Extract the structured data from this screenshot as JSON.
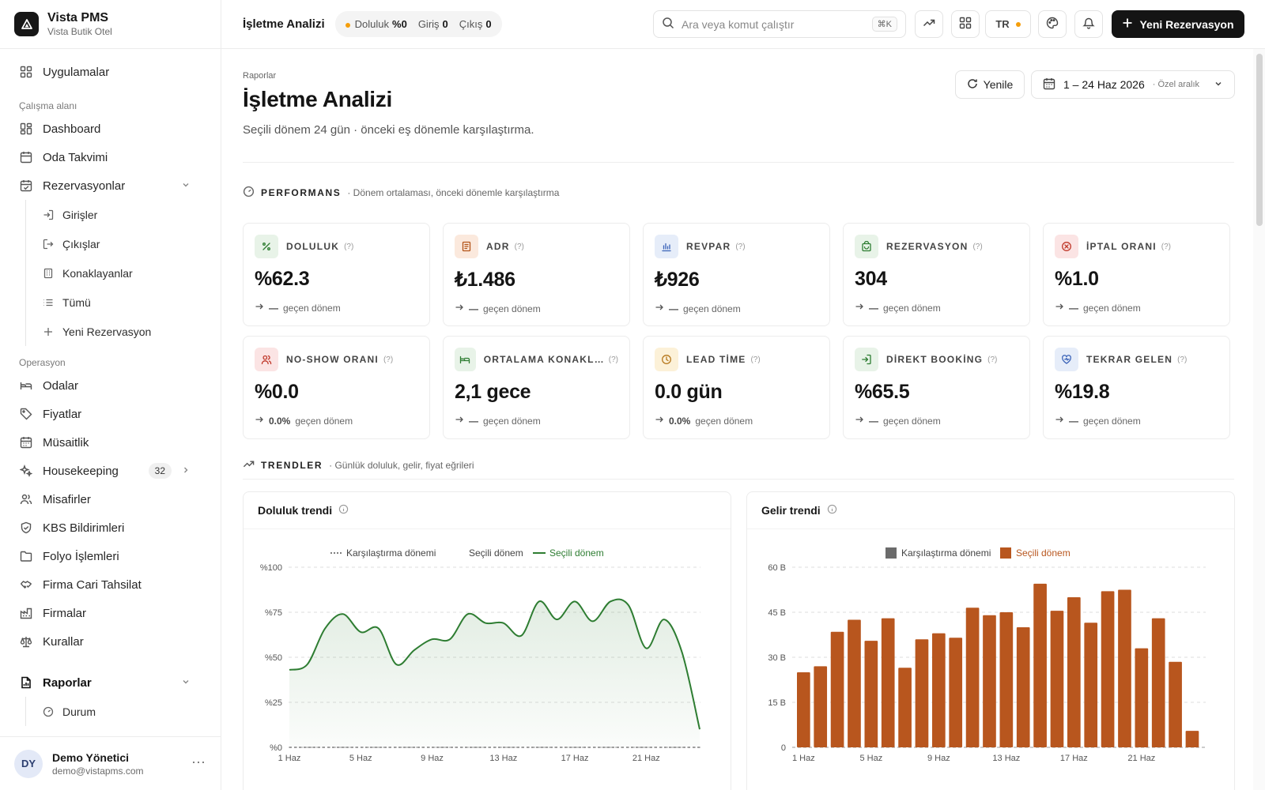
{
  "app": {
    "name": "Vista PMS",
    "hotel": "Vista Butik Otel"
  },
  "sidebar": {
    "apps_label": "Uygulamalar",
    "workspace_label": "Çalışma alanı",
    "workspace": [
      {
        "label": "Dashboard",
        "icon": "dashboard-icon"
      },
      {
        "label": "Oda Takvimi",
        "icon": "calendar-icon"
      },
      {
        "label": "Rezervasyonlar",
        "icon": "calendar-check-icon"
      }
    ],
    "reservations_sub": [
      {
        "label": "Girişler",
        "icon": "login-icon"
      },
      {
        "label": "Çıkışlar",
        "icon": "logout-icon"
      },
      {
        "label": "Konaklayanlar",
        "icon": "building-icon"
      },
      {
        "label": "Tümü",
        "icon": "list-icon"
      },
      {
        "label": "Yeni Rezervasyon",
        "icon": "plus-icon"
      }
    ],
    "operations_label": "Operasyon",
    "operations": [
      {
        "label": "Odalar",
        "icon": "bed-icon"
      },
      {
        "label": "Fiyatlar",
        "icon": "tag-icon"
      },
      {
        "label": "Müsaitlik",
        "icon": "calendar-grid-icon"
      },
      {
        "label": "Housekeeping",
        "icon": "sparkles-icon",
        "badge": "32"
      },
      {
        "label": "Misafirler",
        "icon": "users-icon"
      },
      {
        "label": "KBS Bildirimleri",
        "icon": "shield-icon"
      },
      {
        "label": "Folyo İşlemleri",
        "icon": "folder-icon"
      },
      {
        "label": "Firma Cari Tahsilat",
        "icon": "handshake-icon"
      },
      {
        "label": "Firmalar",
        "icon": "factory-icon"
      },
      {
        "label": "Kurallar",
        "icon": "scale-icon"
      }
    ],
    "reports": {
      "label": "Raporlar",
      "icon": "report-icon"
    },
    "reports_sub": [
      {
        "label": "Durum",
        "icon": "gauge-icon"
      }
    ],
    "user": {
      "initials": "DY",
      "name": "Demo Yönetici",
      "email": "demo@vistapms.com"
    }
  },
  "topbar": {
    "title": "İşletme Analizi",
    "occupancy_label": "Doluluk",
    "occupancy_value": "%0",
    "checkin_label": "Giriş",
    "checkin_value": "0",
    "checkout_label": "Çıkış",
    "checkout_value": "0",
    "search_placeholder": "Ara veya komut çalıştır",
    "search_shortcut": "⌘K",
    "lang": "TR",
    "new_reservation": "Yeni Rezervasyon"
  },
  "page": {
    "breadcrumb": "Raporlar",
    "title": "İşletme Analizi",
    "description": "Seçili dönem 24 gün · önceki eş dönemle karşılaştırma.",
    "refresh_label": "Yenile",
    "date_range": "1 – 24 Haz 2026",
    "date_range_note": "· Özel aralık"
  },
  "performance": {
    "title": "PERFORMANS",
    "subtitle": "· Dönem ortalaması, önceki dönemle karşılaştırma",
    "cards": [
      {
        "label": "DOLULUK",
        "value": "%62.3",
        "delta": "—",
        "compare": "geçen dönem",
        "icon": "percent-icon",
        "bg": "#e8f3e8",
        "fg": "#2e7d32"
      },
      {
        "label": "ADR",
        "value": "₺1.486",
        "delta": "—",
        "compare": "geçen dönem",
        "icon": "receipt-icon",
        "bg": "#fbe9dd",
        "fg": "#b35418"
      },
      {
        "label": "REVPAR",
        "value": "₺926",
        "delta": "—",
        "compare": "geçen dönem",
        "icon": "bar-chart-icon",
        "bg": "#e6edf9",
        "fg": "#3b63b8"
      },
      {
        "label": "REZERVASYON",
        "value": "304",
        "delta": "—",
        "compare": "geçen dönem",
        "icon": "bag-icon",
        "bg": "#e8f3e8",
        "fg": "#2e7d32"
      },
      {
        "label": "İPTAL ORANI",
        "value": "%1.0",
        "delta": "—",
        "compare": "geçen dönem",
        "icon": "x-circle-icon",
        "bg": "#fbe4e4",
        "fg": "#c0392b"
      },
      {
        "label": "NO-SHOW ORANI",
        "value": "%0.0",
        "delta": "0.0%",
        "compare": "geçen dönem",
        "icon": "users-icon",
        "bg": "#fbe4e4",
        "fg": "#c0392b"
      },
      {
        "label": "ORTALAMA KONAKLAMA",
        "value": "2,1 gece",
        "delta": "—",
        "compare": "geçen dönem",
        "icon": "bed-icon",
        "bg": "#e8f3e8",
        "fg": "#2e7d32"
      },
      {
        "label": "LEAD TİME",
        "value": "0.0 gün",
        "delta": "0.0%",
        "compare": "geçen dönem",
        "icon": "clock-icon",
        "bg": "#fcf1d8",
        "fg": "#b7791f"
      },
      {
        "label": "DİREKT BOOKİNG",
        "value": "%65.5",
        "delta": "—",
        "compare": "geçen dönem",
        "icon": "login-icon",
        "bg": "#e8f3e8",
        "fg": "#2e7d32"
      },
      {
        "label": "TEKRAR GELEN",
        "value": "%19.8",
        "delta": "—",
        "compare": "geçen dönem",
        "icon": "heart-icon",
        "bg": "#e6edf9",
        "fg": "#3b63b8"
      }
    ]
  },
  "trends": {
    "title": "TRENDLER",
    "subtitle": "· Günlük doluluk, gelir, fiyat eğrileri"
  },
  "chart_data": [
    {
      "type": "area",
      "title": "Doluluk trendi",
      "legend": [
        "Karşılaştırma dönemi",
        "Seçili dönem",
        "Seçili dönem"
      ],
      "x": [
        "1 Haz",
        "2 Haz",
        "3 Haz",
        "4 Haz",
        "5 Haz",
        "6 Haz",
        "7 Haz",
        "8 Haz",
        "9 Haz",
        "10 Haz",
        "11 Haz",
        "12 Haz",
        "13 Haz",
        "14 Haz",
        "15 Haz",
        "16 Haz",
        "17 Haz",
        "18 Haz",
        "19 Haz",
        "20 Haz",
        "21 Haz",
        "22 Haz",
        "23 Haz",
        "24 Haz"
      ],
      "tick_labels": [
        "1 Haz",
        "5 Haz",
        "9 Haz",
        "13 Haz",
        "17 Haz",
        "21 Haz"
      ],
      "y_ticks": [
        "%0",
        "%25",
        "%50",
        "%75",
        "%100"
      ],
      "series": [
        {
          "name": "Seçili dönem",
          "values": [
            43,
            46,
            66,
            74,
            64,
            66,
            46,
            54,
            60,
            60,
            74,
            69,
            69,
            62,
            81,
            71,
            81,
            70,
            81,
            79,
            55,
            71,
            53,
            10
          ]
        },
        {
          "name": "Karşılaştırma dönemi",
          "values": [
            0,
            0,
            0,
            0,
            0,
            0,
            0,
            0,
            0,
            0,
            0,
            0,
            0,
            0,
            0,
            0,
            0,
            0,
            0,
            0,
            0,
            0,
            0,
            0
          ]
        }
      ],
      "ylim": [
        0,
        100
      ],
      "color": "#2e7d32"
    },
    {
      "type": "bar",
      "title": "Gelir trendi",
      "legend": [
        "Karşılaştırma dönemi",
        "Seçili dönem"
      ],
      "x": [
        "1 Haz",
        "2 Haz",
        "3 Haz",
        "4 Haz",
        "5 Haz",
        "6 Haz",
        "7 Haz",
        "8 Haz",
        "9 Haz",
        "10 Haz",
        "11 Haz",
        "12 Haz",
        "13 Haz",
        "14 Haz",
        "15 Haz",
        "16 Haz",
        "17 Haz",
        "18 Haz",
        "19 Haz",
        "20 Haz",
        "21 Haz",
        "22 Haz",
        "23 Haz",
        "24 Haz"
      ],
      "tick_labels": [
        "1 Haz",
        "5 Haz",
        "9 Haz",
        "13 Haz",
        "17 Haz",
        "21 Haz"
      ],
      "y_ticks": [
        "0",
        "15 B",
        "30 B",
        "45 B",
        "60 B"
      ],
      "series": [
        {
          "name": "Seçili dönem",
          "values": [
            25,
            27,
            38.5,
            42.5,
            35.5,
            43,
            26.5,
            36,
            38,
            36.5,
            46.5,
            44,
            45,
            40,
            54.5,
            45.5,
            50,
            41.5,
            52,
            52.5,
            33,
            43,
            28.5,
            5.5
          ]
        }
      ],
      "ylim": [
        0,
        60
      ],
      "color": "#b8561e",
      "compare_color": "#6b6b6b"
    }
  ]
}
